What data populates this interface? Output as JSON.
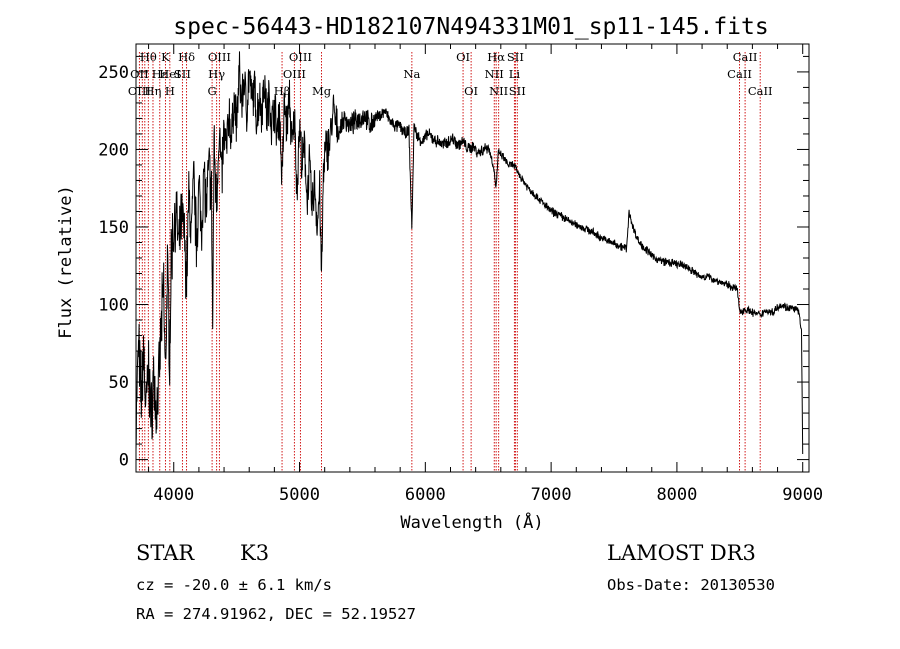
{
  "chart_data": {
    "type": "line",
    "title": "spec-56443-HD182107N494331M01_sp11-145.fits",
    "xlabel": "Wavelength (Å)",
    "ylabel": "Flux (relative)",
    "xlim": [
      3700,
      9050
    ],
    "ylim": [
      -8,
      268
    ],
    "xticks": [
      4000,
      5000,
      6000,
      7000,
      8000,
      9000
    ],
    "yticks": [
      0,
      50,
      100,
      150,
      200,
      250
    ],
    "series": [
      {
        "name": "spectrum",
        "x": [
          3700,
          3720,
          3740,
          3760,
          3780,
          3800,
          3820,
          3840,
          3860,
          3880,
          3900,
          3920,
          3933,
          3950,
          3968,
          3980,
          4000,
          4020,
          4040,
          4060,
          4080,
          4101,
          4120,
          4140,
          4160,
          4180,
          4200,
          4220,
          4240,
          4260,
          4280,
          4300,
          4310,
          4320,
          4340,
          4360,
          4380,
          4400,
          4420,
          4440,
          4460,
          4480,
          4500,
          4520,
          4540,
          4560,
          4580,
          4600,
          4620,
          4640,
          4660,
          4680,
          4700,
          4720,
          4740,
          4760,
          4780,
          4800,
          4820,
          4840,
          4861,
          4880,
          4900,
          4920,
          4940,
          4960,
          4980,
          5000,
          5020,
          5040,
          5060,
          5080,
          5100,
          5120,
          5140,
          5160,
          5175,
          5190,
          5210,
          5240,
          5270,
          5300,
          5330,
          5360,
          5400,
          5440,
          5480,
          5520,
          5560,
          5600,
          5640,
          5680,
          5720,
          5760,
          5800,
          5840,
          5870,
          5893,
          5910,
          5940,
          5980,
          6020,
          6060,
          6100,
          6140,
          6180,
          6220,
          6260,
          6300,
          6340,
          6380,
          6420,
          6460,
          6500,
          6540,
          6563,
          6580,
          6620,
          6660,
          6700,
          6760,
          6820,
          6880,
          6940,
          7000,
          7060,
          7120,
          7180,
          7240,
          7300,
          7360,
          7420,
          7480,
          7540,
          7600,
          7620,
          7650,
          7700,
          7760,
          7820,
          7880,
          7940,
          8000,
          8060,
          8120,
          8180,
          8240,
          8300,
          8360,
          8420,
          8480,
          8498,
          8542,
          8600,
          8662,
          8700,
          8760,
          8820,
          8880,
          8940,
          8970,
          8990,
          9000
        ],
        "values": [
          20,
          75,
          40,
          70,
          30,
          60,
          25,
          55,
          30,
          45,
          85,
          110,
          55,
          120,
          70,
          130,
          150,
          160,
          135,
          155,
          150,
          115,
          170,
          145,
          180,
          140,
          175,
          150,
          185,
          160,
          190,
          170,
          85,
          205,
          165,
          215,
          180,
          210,
          200,
          225,
          205,
          235,
          215,
          250,
          230,
          245,
          225,
          250,
          230,
          240,
          220,
          235,
          225,
          245,
          220,
          235,
          215,
          230,
          210,
          225,
          180,
          230,
          215,
          235,
          200,
          220,
          175,
          215,
          190,
          200,
          170,
          190,
          160,
          180,
          150,
          175,
          115,
          185,
          200,
          205,
          225,
          210,
          215,
          220,
          215,
          218,
          220,
          222,
          215,
          220,
          222,
          225,
          218,
          215,
          215,
          210,
          212,
          148,
          215,
          208,
          205,
          210,
          207,
          205,
          203,
          205,
          207,
          203,
          205,
          200,
          202,
          198,
          200,
          202,
          190,
          175,
          198,
          195,
          190,
          190,
          182,
          175,
          170,
          165,
          160,
          158,
          155,
          152,
          150,
          148,
          145,
          142,
          140,
          138,
          136,
          160,
          150,
          140,
          135,
          130,
          128,
          127,
          126,
          125,
          122,
          118,
          118,
          116,
          114,
          112,
          110,
          95,
          97,
          95,
          93,
          96,
          95,
          100,
          98,
          97,
          95,
          82,
          5
        ]
      }
    ],
    "line_markers": [
      {
        "label": "Hθ",
        "wl": 3798,
        "row": 0
      },
      {
        "label": "OII",
        "wl": 3727,
        "row": 1
      },
      {
        "label": "OIII",
        "wl": 3727,
        "row": 2
      },
      {
        "label": "Hη",
        "wl": 3835,
        "row": 2
      },
      {
        "label": "Hε",
        "wl": 3889,
        "row": 1
      },
      {
        "label": "K",
        "wl": 3934,
        "row": 0
      },
      {
        "label": "HeI",
        "wl": 3970,
        "row": 1
      },
      {
        "label": "H",
        "wl": 3969,
        "row": 2
      },
      {
        "label": "SII",
        "wl": 4069,
        "row": 1
      },
      {
        "label": "Hδ",
        "wl": 4102,
        "row": 0
      },
      {
        "label": "OIII",
        "wl": 4363,
        "row": 0
      },
      {
        "label": "Hγ",
        "wl": 4341,
        "row": 1
      },
      {
        "label": "G",
        "wl": 4305,
        "row": 2
      },
      {
        "label": "Hβ",
        "wl": 4861,
        "row": 2
      },
      {
        "label": "OIII",
        "wl": 5007,
        "row": 0
      },
      {
        "label": "OIII",
        "wl": 4959,
        "row": 1
      },
      {
        "label": "Mg",
        "wl": 5175,
        "row": 2
      },
      {
        "label": "Na",
        "wl": 5893,
        "row": 1
      },
      {
        "label": "OI",
        "wl": 6300,
        "row": 0
      },
      {
        "label": "OI",
        "wl": 6364,
        "row": 2
      },
      {
        "label": "Hα",
        "wl": 6563,
        "row": 0
      },
      {
        "label": "NII",
        "wl": 6548,
        "row": 1
      },
      {
        "label": "NII",
        "wl": 6583,
        "row": 2
      },
      {
        "label": "SII",
        "wl": 6716,
        "row": 0
      },
      {
        "label": "Li",
        "wl": 6708,
        "row": 1
      },
      {
        "label": "SII",
        "wl": 6731,
        "row": 2
      },
      {
        "label": "CaII",
        "wl": 8542,
        "row": 0
      },
      {
        "label": "CaII",
        "wl": 8498,
        "row": 1
      },
      {
        "label": "CaII",
        "wl": 8662,
        "row": 2
      }
    ],
    "marker_lines": [
      3727,
      3750,
      3770,
      3798,
      3835,
      3889,
      3934,
      3969,
      4069,
      4102,
      4305,
      4341,
      4363,
      4861,
      4959,
      5007,
      5175,
      5893,
      6300,
      6364,
      6548,
      6563,
      6583,
      6708,
      6716,
      6731,
      8498,
      8542,
      8662
    ],
    "colors": {
      "line": "#000000",
      "markers": "#cc0000",
      "axes": "#000000"
    }
  },
  "info": {
    "object_class": "STAR",
    "subclass": "K3",
    "cz": "cz = -20.0 ± 6.1 km/s",
    "coords": "RA = 274.91962, DEC =  52.19527",
    "survey": "LAMOST DR3",
    "obs_date": "Obs-Date: 20130530"
  }
}
